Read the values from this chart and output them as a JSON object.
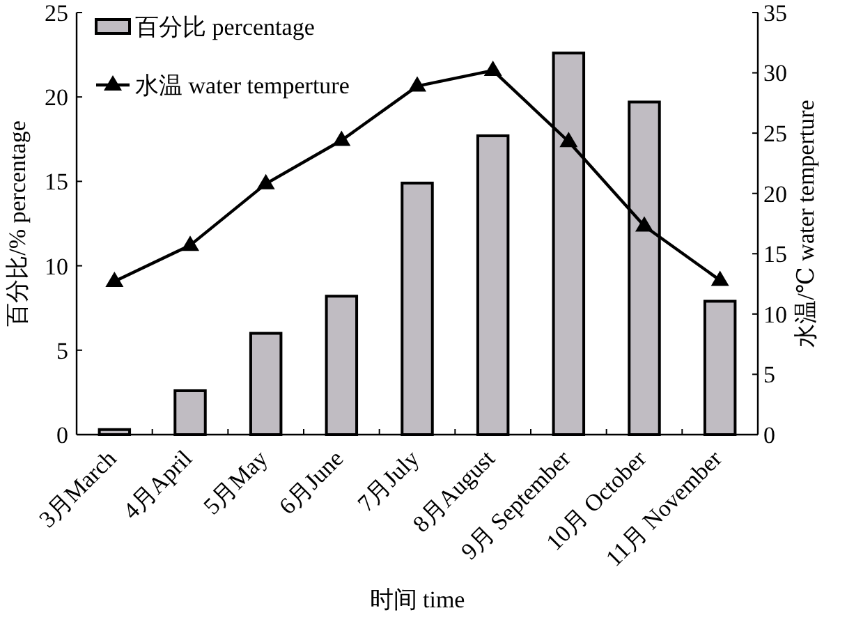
{
  "chart_data": {
    "type": "bar",
    "xlabel": "时间 time",
    "ylabel": "百分比/% percentage",
    "y2label": "水温/℃ water temperture",
    "categories": [
      "3月March",
      "4月April",
      "5月May",
      "6月June",
      "7月July",
      "8月August",
      "9月 September",
      "10月 October",
      "11月 November"
    ],
    "series": [
      {
        "name": "百分比 percentage",
        "color": "#c0bcc2",
        "values": [
          0.3,
          2.6,
          6.0,
          8.2,
          14.9,
          17.7,
          22.6,
          19.7,
          7.9
        ]
      },
      {
        "name": "水温 water temperture",
        "type": "line",
        "axis": "y2",
        "color": "#000000",
        "marker": "triangle",
        "values": [
          12.7,
          15.7,
          20.8,
          24.4,
          28.9,
          30.2,
          24.3,
          17.3,
          12.8
        ]
      }
    ],
    "ylim": [
      0,
      25
    ],
    "yticks": [
      0,
      5,
      10,
      15,
      20,
      25
    ],
    "y2lim": [
      0,
      35
    ],
    "y2ticks": [
      0,
      5,
      10,
      15,
      20,
      25,
      30,
      35
    ],
    "legend": "top left",
    "grid": false
  }
}
